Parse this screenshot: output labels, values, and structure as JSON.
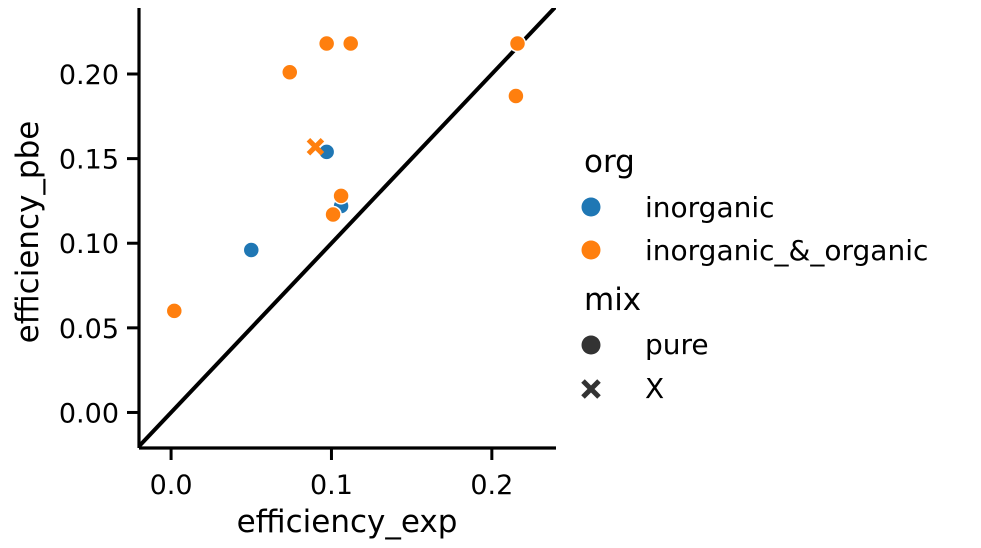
{
  "chart_data": {
    "type": "scatter",
    "xlabel": "efficiency_exp",
    "ylabel": "efficiency_pbe",
    "xlim": [
      -0.02,
      0.24
    ],
    "ylim": [
      -0.021,
      0.239
    ],
    "xticks": [
      0.0,
      0.1,
      0.2
    ],
    "xtick_labels": [
      "0.0",
      "0.1",
      "0.2"
    ],
    "yticks": [
      0.0,
      0.05,
      0.1,
      0.15,
      0.2
    ],
    "ytick_labels": [
      "0.00",
      "0.05",
      "0.10",
      "0.15",
      "0.20"
    ],
    "grid": false,
    "reference_line": "y = x",
    "legend_position": "right",
    "legend": {
      "hue_title": "org",
      "hue_entries": [
        {
          "label": "inorganic",
          "color": "#1f77b4"
        },
        {
          "label": "inorganic_&_organic",
          "color": "#ff7f0e"
        }
      ],
      "style_title": "mix",
      "style_entries": [
        {
          "label": "pure",
          "marker": "circle"
        },
        {
          "label": "X",
          "marker": "x"
        }
      ]
    },
    "series": [
      {
        "hue": "inorganic",
        "color": "#1f77b4",
        "points": [
          {
            "x": 0.05,
            "y": 0.096,
            "mix": "pure"
          },
          {
            "x": 0.097,
            "y": 0.154,
            "mix": "pure"
          },
          {
            "x": 0.106,
            "y": 0.122,
            "mix": "pure"
          }
        ]
      },
      {
        "hue": "inorganic_&_organic",
        "color": "#ff7f0e",
        "points": [
          {
            "x": 0.002,
            "y": 0.06,
            "mix": "pure"
          },
          {
            "x": 0.074,
            "y": 0.201,
            "mix": "pure"
          },
          {
            "x": 0.097,
            "y": 0.218,
            "mix": "pure"
          },
          {
            "x": 0.112,
            "y": 0.218,
            "mix": "pure"
          },
          {
            "x": 0.216,
            "y": 0.218,
            "mix": "pure"
          },
          {
            "x": 0.215,
            "y": 0.187,
            "mix": "pure"
          },
          {
            "x": 0.106,
            "y": 0.128,
            "mix": "pure"
          },
          {
            "x": 0.101,
            "y": 0.117,
            "mix": "pure"
          },
          {
            "x": 0.09,
            "y": 0.157,
            "mix": "X"
          }
        ]
      }
    ]
  }
}
